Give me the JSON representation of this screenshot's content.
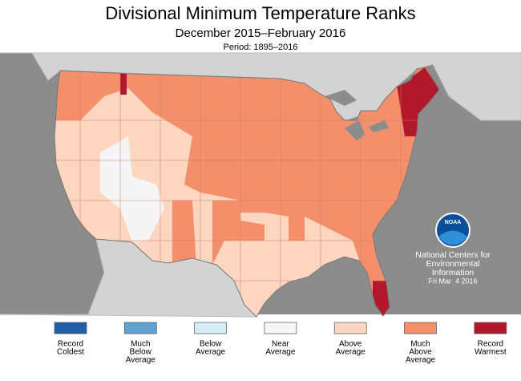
{
  "header": {
    "title": "Divisional Minimum Temperature Ranks",
    "subtitle": "December 2015–February 2016",
    "period": "Period: 1895–2016"
  },
  "legend": [
    {
      "label": [
        "Record",
        "Coldest"
      ],
      "color": "#1f5fa8"
    },
    {
      "label": [
        "Much",
        "Below",
        "Average"
      ],
      "color": "#5fa3d3"
    },
    {
      "label": [
        "Below",
        "Average"
      ],
      "color": "#d6ecf7"
    },
    {
      "label": [
        "Near",
        "Average"
      ],
      "color": "#f5f5f5"
    },
    {
      "label": [
        "Above",
        "Average"
      ],
      "color": "#fcd6c0"
    },
    {
      "label": [
        "Much",
        "Above",
        "Average"
      ],
      "color": "#f3906b"
    },
    {
      "label": [
        "Record",
        "Warmest"
      ],
      "color": "#b2182b"
    }
  ],
  "credit": {
    "logo": "NOAA",
    "lines": [
      "National Centers for",
      "Environmental",
      "Information",
      "Fri Mar  4 2016"
    ]
  }
}
